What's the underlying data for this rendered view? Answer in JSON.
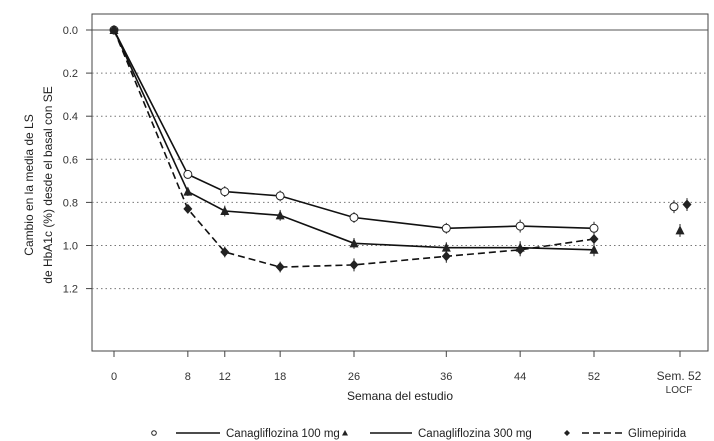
{
  "chart_data": {
    "type": "line",
    "xlabel": "Semana del estudio",
    "ylabel_line1": "Cambio en la media de LS",
    "ylabel_line2": "de HbA1c (%) desde el basal con SE",
    "x": [
      0,
      8,
      12,
      18,
      26,
      36,
      44,
      52
    ],
    "x_ticks": [
      "0",
      "8",
      "12",
      "18",
      "26",
      "36",
      "44",
      "52"
    ],
    "extra_x_label_line1": "Sem. 52",
    "extra_x_label_line2": "LOCF",
    "y_ticks": [
      "0.0",
      "0.2",
      "0.4",
      "0.6",
      "0.8",
      "1.0",
      "1.2"
    ],
    "ylim": [
      1.25,
      -0.05
    ],
    "grid": "horizontal dotted",
    "reference_line": 0,
    "legend_position": "bottom",
    "series": [
      {
        "name": "Canagliflozina 100 mg",
        "marker": "open-circle",
        "line": "solid",
        "values": [
          0.0,
          0.67,
          0.75,
          0.77,
          0.87,
          0.92,
          0.91,
          0.92
        ],
        "se": [
          0.0,
          0.02,
          0.025,
          0.025,
          0.025,
          0.025,
          0.03,
          0.03
        ],
        "locf": 0.82
      },
      {
        "name": "Canagliflozina 300 mg",
        "marker": "filled-triangle",
        "line": "solid",
        "values": [
          0.0,
          0.75,
          0.84,
          0.86,
          0.99,
          1.01,
          1.01,
          1.02
        ],
        "se": [
          0.0,
          0.02,
          0.025,
          0.025,
          0.025,
          0.025,
          0.03,
          0.03
        ],
        "locf": 0.93
      },
      {
        "name": "Glimepirida",
        "marker": "filled-diamond",
        "line": "dashed",
        "values": [
          0.0,
          0.83,
          1.03,
          1.1,
          1.09,
          1.05,
          1.02,
          0.97
        ],
        "se": [
          0.0,
          0.02,
          0.025,
          0.025,
          0.03,
          0.03,
          0.03,
          0.03
        ],
        "locf": 0.81
      }
    ]
  }
}
